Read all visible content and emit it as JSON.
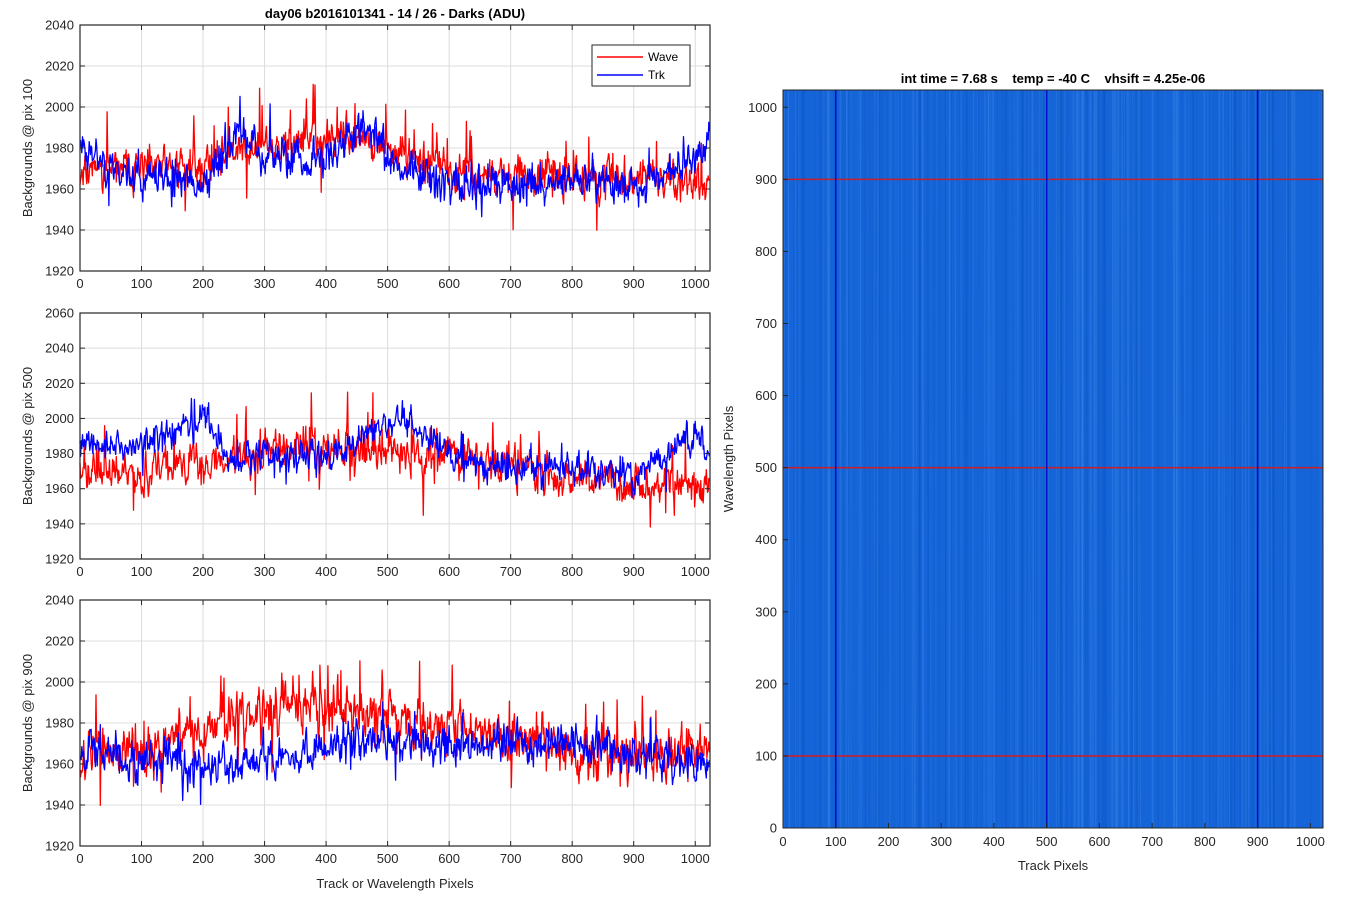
{
  "figure_title": "day06 b2016101341 - 14 / 26 - Darks (ADU)",
  "colors": {
    "wave": "#ff0000",
    "trk": "#0000ff",
    "image_bg": "#1565d8",
    "image_line_h": "#c8202a",
    "image_line_v": "#0010c8",
    "axis": "#262626",
    "grid": "#dcdcdc"
  },
  "chart_data": [
    {
      "type": "line",
      "title": "day06 b2016101341 - 14 / 26 - Darks (ADU)",
      "xlabel": "",
      "ylabel": "Backgrounds @ pix 100",
      "xlim": [
        0,
        1024
      ],
      "ylim": [
        1920,
        2040
      ],
      "xticks": [
        0,
        100,
        200,
        300,
        400,
        500,
        600,
        700,
        800,
        900,
        1000
      ],
      "yticks": [
        1920,
        1940,
        1960,
        1980,
        2000,
        2020,
        2040
      ],
      "grid": true,
      "legend": {
        "position": "top-right",
        "entries": [
          "Wave",
          "Trk"
        ]
      },
      "series": [
        {
          "name": "Wave",
          "color": "#ff0000",
          "baseline": 1975,
          "trend": [
            [
              0,
              1970
            ],
            [
              100,
              1970
            ],
            [
              200,
              1972
            ],
            [
              250,
              1978
            ],
            [
              300,
              1980
            ],
            [
              400,
              1984
            ],
            [
              450,
              1986
            ],
            [
              500,
              1978
            ],
            [
              600,
              1970
            ],
            [
              700,
              1966
            ],
            [
              800,
              1966
            ],
            [
              900,
              1965
            ],
            [
              1024,
              1965
            ]
          ],
          "noise": 8,
          "spike_rate": 0.05,
          "spike_amp": 22,
          "seed": 11
        },
        {
          "name": "Trk",
          "color": "#0000ff",
          "baseline": 1968,
          "trend": [
            [
              0,
              1985
            ],
            [
              30,
              1975
            ],
            [
              100,
              1965
            ],
            [
              200,
              1962
            ],
            [
              260,
              1990
            ],
            [
              300,
              1975
            ],
            [
              400,
              1975
            ],
            [
              470,
              1992
            ],
            [
              500,
              1978
            ],
            [
              600,
              1962
            ],
            [
              700,
              1960
            ],
            [
              800,
              1966
            ],
            [
              900,
              1960
            ],
            [
              1000,
              1975
            ],
            [
              1024,
              1985
            ]
          ],
          "noise": 8,
          "spike_rate": 0.03,
          "spike_amp": 15,
          "seed": 23
        }
      ]
    },
    {
      "type": "line",
      "xlabel": "",
      "ylabel": "Backgrounds @ pix 500",
      "xlim": [
        0,
        1024
      ],
      "ylim": [
        1920,
        2060
      ],
      "xticks": [
        0,
        100,
        200,
        300,
        400,
        500,
        600,
        700,
        800,
        900,
        1000
      ],
      "yticks": [
        1920,
        1940,
        1960,
        1980,
        2000,
        2020,
        2040,
        2060
      ],
      "grid": true,
      "series": [
        {
          "name": "Wave",
          "color": "#ff0000",
          "baseline": 1975,
          "trend": [
            [
              0,
              1968
            ],
            [
              100,
              1968
            ],
            [
              200,
              1975
            ],
            [
              300,
              1982
            ],
            [
              400,
              1984
            ],
            [
              500,
              1980
            ],
            [
              600,
              1982
            ],
            [
              700,
              1972
            ],
            [
              800,
              1966
            ],
            [
              900,
              1962
            ],
            [
              1024,
              1962
            ]
          ],
          "noise": 9,
          "spike_rate": 0.05,
          "spike_amp": 25,
          "seed": 37
        },
        {
          "name": "Trk",
          "color": "#0000ff",
          "baseline": 1978,
          "trend": [
            [
              0,
              1985
            ],
            [
              100,
              1985
            ],
            [
              200,
              2000
            ],
            [
              250,
              1975
            ],
            [
              300,
              1978
            ],
            [
              400,
              1978
            ],
            [
              520,
              2000
            ],
            [
              600,
              1980
            ],
            [
              700,
              1970
            ],
            [
              800,
              1972
            ],
            [
              900,
              1968
            ],
            [
              1000,
              1990
            ],
            [
              1024,
              1978
            ]
          ],
          "noise": 7,
          "spike_rate": 0.03,
          "spike_amp": 14,
          "seed": 41
        }
      ]
    },
    {
      "type": "line",
      "xlabel": "Track or Wavelength Pixels",
      "ylabel": "Backgrounds @ pix 900",
      "xlim": [
        0,
        1024
      ],
      "ylim": [
        1920,
        2040
      ],
      "xticks": [
        0,
        100,
        200,
        300,
        400,
        500,
        600,
        700,
        800,
        900,
        1000
      ],
      "yticks": [
        1920,
        1940,
        1960,
        1980,
        2000,
        2020,
        2040
      ],
      "grid": true,
      "series": [
        {
          "name": "Wave",
          "color": "#ff0000",
          "baseline": 1975,
          "trend": [
            [
              0,
              1966
            ],
            [
              100,
              1966
            ],
            [
              200,
              1978
            ],
            [
              300,
              1985
            ],
            [
              400,
              1990
            ],
            [
              500,
              1985
            ],
            [
              600,
              1980
            ],
            [
              700,
              1972
            ],
            [
              800,
              1968
            ],
            [
              900,
              1965
            ],
            [
              1024,
              1965
            ]
          ],
          "noise": 10,
          "spike_rate": 0.06,
          "spike_amp": 25,
          "seed": 53
        },
        {
          "name": "Trk",
          "color": "#0000ff",
          "baseline": 1965,
          "trend": [
            [
              0,
              1968
            ],
            [
              100,
              1962
            ],
            [
              200,
              1960
            ],
            [
              300,
              1962
            ],
            [
              400,
              1968
            ],
            [
              500,
              1972
            ],
            [
              600,
              1968
            ],
            [
              700,
              1970
            ],
            [
              800,
              1972
            ],
            [
              900,
              1966
            ],
            [
              1024,
              1958
            ]
          ],
          "noise": 8,
          "spike_rate": 0.03,
          "spike_amp": 14,
          "seed": 67
        }
      ]
    },
    {
      "type": "heatmap",
      "title": "int time = 7.68 s    temp = -40 C    vhsift = 4.25e-06",
      "xlabel": "Track Pixels",
      "ylabel": "Wavelength Pixels",
      "xlim": [
        0,
        1024
      ],
      "ylim": [
        0,
        1024
      ],
      "xticks": [
        0,
        100,
        200,
        300,
        400,
        500,
        600,
        700,
        800,
        900,
        1000
      ],
      "yticks": [
        0,
        100,
        200,
        300,
        400,
        500,
        600,
        700,
        800,
        900,
        1000
      ],
      "horizontal_lines": [
        100,
        500,
        900
      ],
      "vertical_lines": [
        100,
        500,
        900
      ],
      "seed": 91
    }
  ]
}
